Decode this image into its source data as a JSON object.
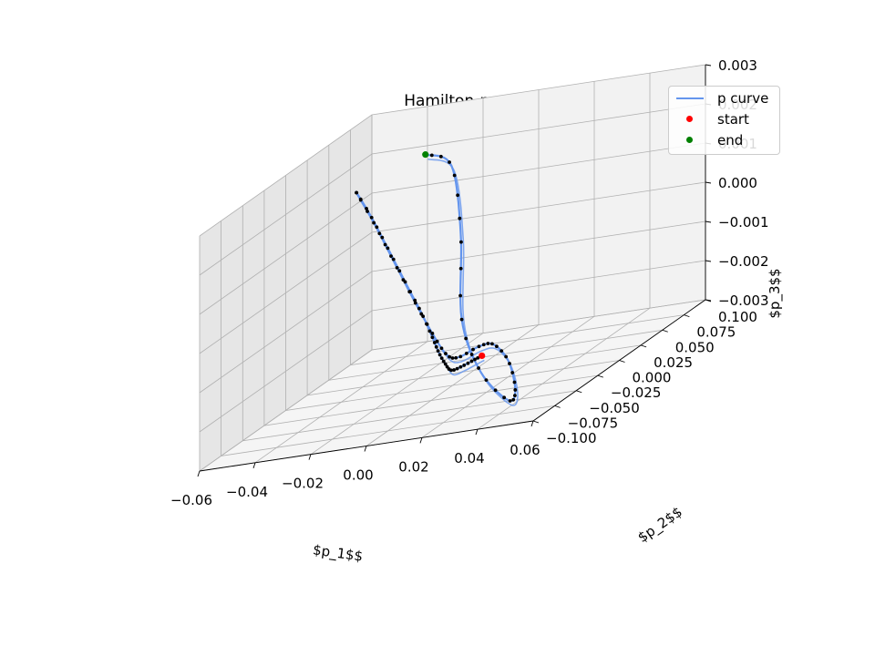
{
  "chart_data": {
    "type": "line3d",
    "title": "Hamilton p_i",
    "title_main": "Hamilton",
    "title_symbol": "p",
    "title_sub": "i",
    "xlabel": "$p_1$$",
    "ylabel": "$p_2$$",
    "zlabel": "$p_3$$",
    "xlim": [
      -0.06,
      0.06
    ],
    "ylim": [
      -0.1,
      0.1
    ],
    "zlim": [
      -0.003,
      0.003
    ],
    "xticks": [
      "−0.06",
      "−0.04",
      "−0.02",
      "0.00",
      "0.02",
      "0.04",
      "0.06"
    ],
    "yticks": [
      "−0.100",
      "−0.075",
      "−0.050",
      "−0.025",
      "0.000",
      "0.025",
      "0.050",
      "0.075",
      "0.100"
    ],
    "zticks": [
      "−0.003",
      "−0.002",
      "−0.001",
      "0.000",
      "0.001",
      "0.002",
      "0.003"
    ],
    "legend": {
      "location": "upper right",
      "entries": [
        "p curve",
        "start",
        "end"
      ]
    },
    "grid": true,
    "colors": {
      "curve": "#6495ed",
      "start": "#ff0000",
      "end": "#008000",
      "points": "#000000"
    },
    "series": [
      {
        "name": "p curve",
        "x": [
          0.04,
          0.034,
          0.025,
          0.015,
          0.005,
          -0.005,
          -0.015,
          -0.025,
          -0.035,
          -0.045,
          -0.052,
          -0.058,
          -0.05,
          -0.04,
          -0.028,
          -0.015,
          -0.002,
          0.01,
          0.025,
          0.038,
          0.048,
          0.052,
          0.048,
          0.035,
          0.025,
          0.02,
          0.012,
          -0.002
        ],
        "y": [
          -0.095,
          -0.085,
          -0.07,
          -0.05,
          -0.025,
          0.0,
          0.025,
          0.045,
          0.06,
          0.07,
          0.072,
          0.075,
          0.07,
          0.06,
          0.045,
          0.025,
          0.0,
          -0.025,
          -0.05,
          -0.075,
          -0.09,
          -0.095,
          -0.09,
          -0.08,
          -0.07,
          -0.055,
          -0.04,
          -0.025
        ],
        "z": [
          -0.0012,
          -0.0014,
          -0.0017,
          -0.002,
          -0.0021,
          -0.0021,
          -0.002,
          -0.0016,
          -0.001,
          -0.0001,
          0.0008,
          0.0014,
          0.0006,
          -0.0003,
          -0.0012,
          -0.0019,
          -0.0022,
          -0.002,
          -0.0015,
          -0.0012,
          -0.0015,
          -0.0022,
          -0.0025,
          -0.0018,
          -0.0005,
          0.0015,
          0.0031,
          0.0033
        ]
      }
    ],
    "markers": {
      "start": {
        "x": 0.04,
        "y": -0.095,
        "z": -0.0012
      },
      "end": {
        "x": -0.002,
        "y": -0.025,
        "z": 0.0033
      }
    }
  }
}
